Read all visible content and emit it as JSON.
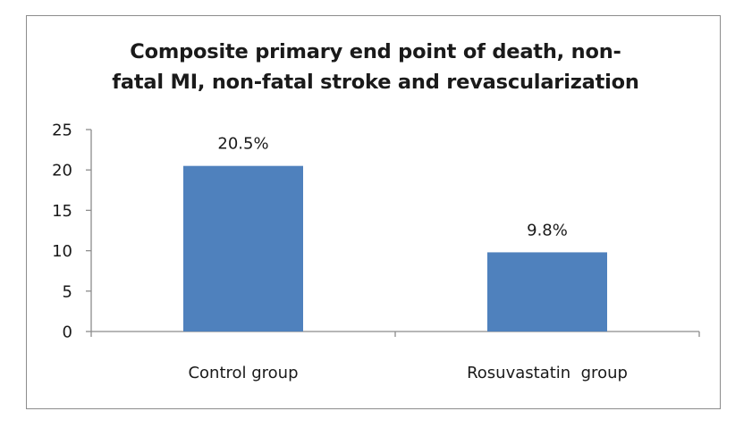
{
  "chart_data": {
    "type": "bar",
    "title_lines": [
      "Composite primary end point of death, non-",
      "fatal MI, non-fatal stroke and revascularization"
    ],
    "categories": [
      "Control group",
      "Rosuvastatin  group"
    ],
    "values": [
      20.5,
      9.8
    ],
    "data_labels": [
      "20.5%",
      "9.8%"
    ],
    "xlabel": "",
    "ylabel": "",
    "ylim": [
      0,
      25
    ],
    "yticks": [
      "0",
      "5",
      "10",
      "15",
      "20",
      "25"
    ],
    "grid": false,
    "bar_color": "#4f81bd"
  }
}
